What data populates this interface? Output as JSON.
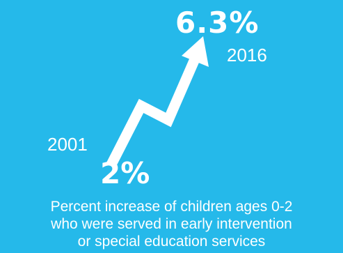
{
  "start": {
    "year": "2001",
    "value": "2%"
  },
  "end": {
    "year": "2016",
    "value": "6.3%"
  },
  "caption": {
    "line1": "Percent increase of children ages 0-2",
    "line2": "who were served in early intervention",
    "line3": "or special education services"
  },
  "colors": {
    "background": "#25b9ea",
    "foreground": "#ffffff"
  },
  "icons": {
    "arrow": "zigzag-up-arrow-icon"
  }
}
